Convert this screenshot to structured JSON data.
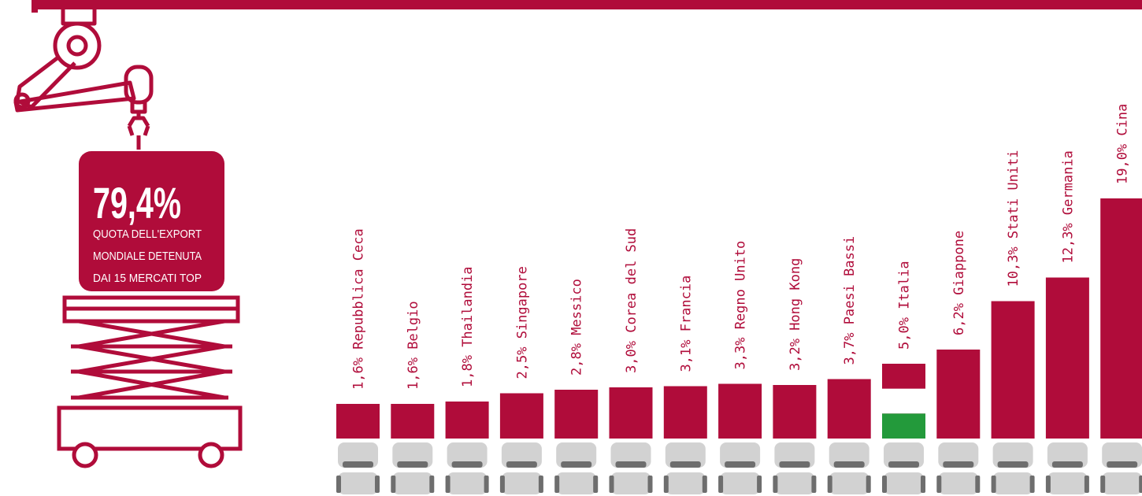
{
  "headline": {
    "value": "79,4%",
    "lines": [
      "QUOTA DELL'EXPORT",
      "MONDIALE DETENUTA",
      "DAI 15 MERCATI TOP"
    ]
  },
  "chart_data": {
    "type": "bar",
    "categories": [
      "Repubblica Ceca",
      "Belgio",
      "Thailandia",
      "Singapore",
      "Messico",
      "Corea del Sud",
      "Francia",
      "Regno Unito",
      "Hong Kong",
      "Paesi Bassi",
      "Italia",
      "Giappone",
      "Stati Uniti",
      "Germania",
      "Cina"
    ],
    "values": [
      1.6,
      1.6,
      1.8,
      2.5,
      2.8,
      3.0,
      3.1,
      3.3,
      3.2,
      3.7,
      5.0,
      6.2,
      10.3,
      12.3,
      19.0
    ],
    "value_labels": [
      "1,6%",
      "1,6%",
      "1,8%",
      "2,5%",
      "2,8%",
      "3,0%",
      "3,1%",
      "3,3%",
      "3,2%",
      "3,7%",
      "5,0%",
      "6,2%",
      "10,3%",
      "12,3%",
      "19,0%"
    ],
    "color": "#b00c3a",
    "bar_colors": [
      "#b00c3a",
      "#b00c3a",
      "#b00c3a",
      "#b00c3a",
      "#b00c3a",
      "#b00c3a",
      "#b00c3a",
      "#b00c3a",
      "#b00c3a",
      "#b00c3a",
      [
        "#b00c3a",
        "#ffffff",
        "#239a3b"
      ],
      "#b00c3a",
      "#b00c3a",
      "#b00c3a",
      "#b00c3a"
    ]
  }
}
